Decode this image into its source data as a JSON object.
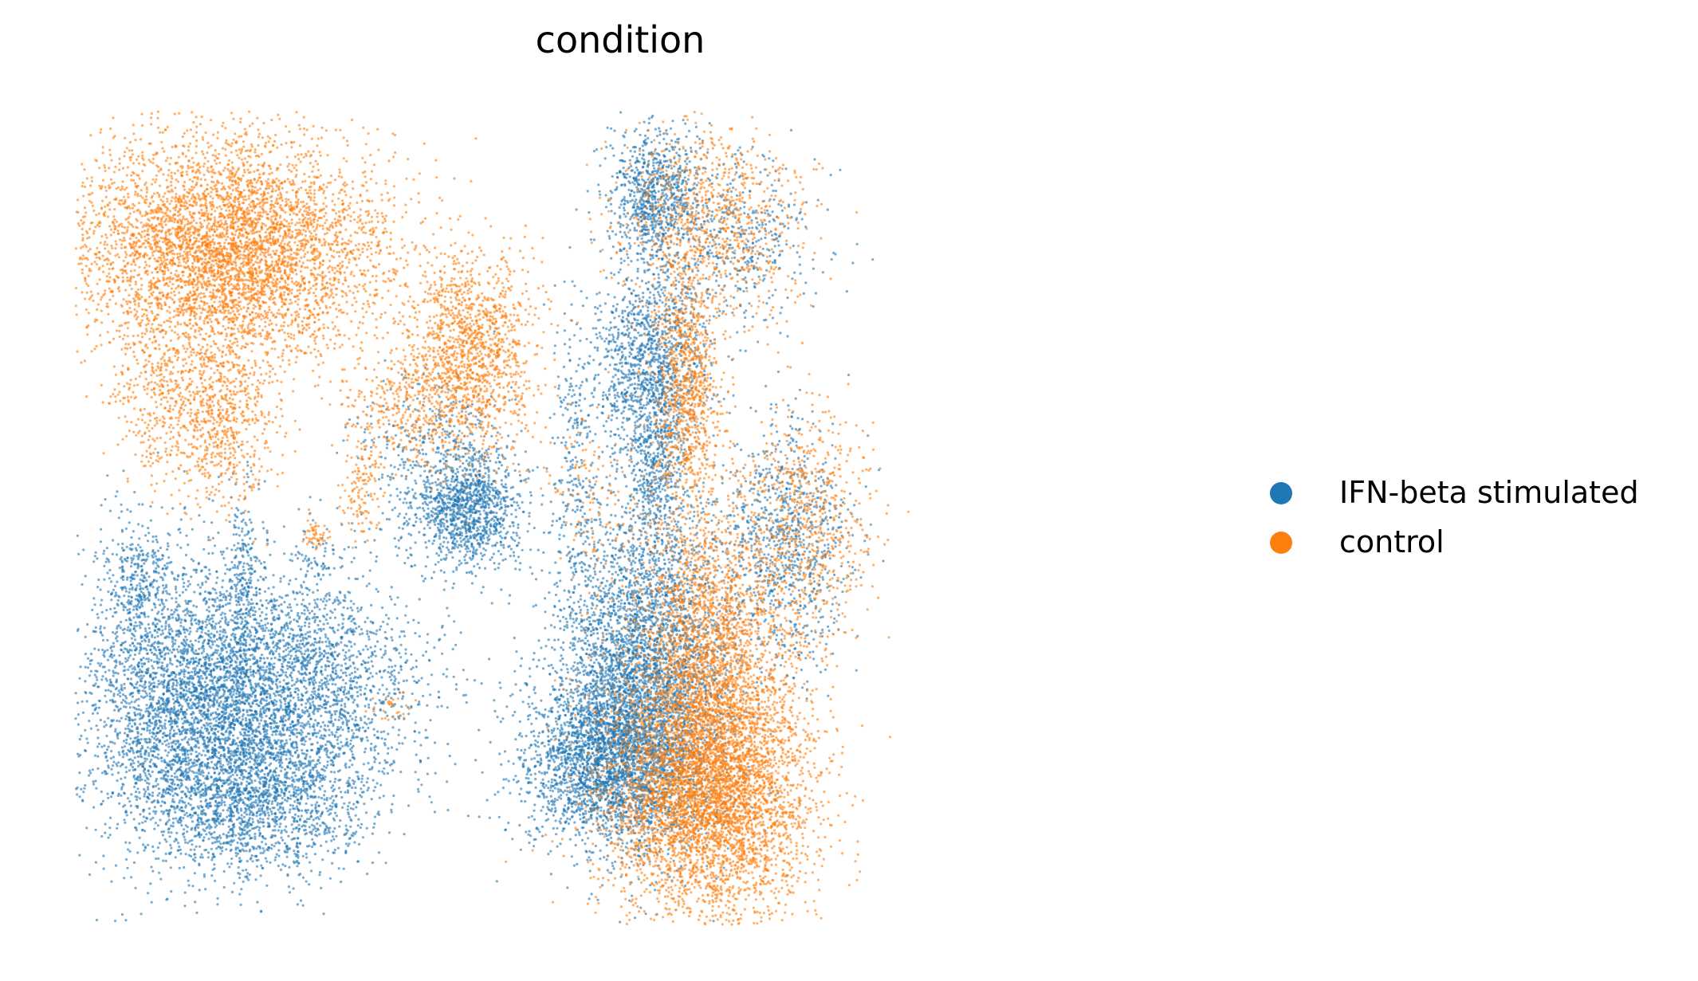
{
  "chart_data": {
    "type": "scatter",
    "title": "condition",
    "xlabel": "",
    "ylabel": "",
    "axes_visible": false,
    "grid": false,
    "legend_position": "right",
    "xlim": [
      0,
      1
    ],
    "ylim": [
      0,
      1
    ],
    "point_alpha": 0.6,
    "series": [
      {
        "name": "IFN-beta stimulated",
        "color": "#1f77b4",
        "clusters": [
          {
            "cx": 0.1,
            "cy": 0.27,
            "sx": 0.05,
            "sy": 0.09,
            "n": 3200
          },
          {
            "cx": 0.2,
            "cy": 0.3,
            "sx": 0.06,
            "sy": 0.07,
            "n": 2400
          },
          {
            "cx": 0.17,
            "cy": 0.16,
            "sx": 0.05,
            "sy": 0.05,
            "n": 1700
          },
          {
            "cx": 0.06,
            "cy": 0.43,
            "sx": 0.02,
            "sy": 0.04,
            "n": 300
          },
          {
            "cx": 0.155,
            "cy": 0.43,
            "sx": 0.008,
            "sy": 0.06,
            "n": 200
          },
          {
            "cx": 0.36,
            "cy": 0.51,
            "sx": 0.025,
            "sy": 0.035,
            "n": 1100
          },
          {
            "cx": 0.33,
            "cy": 0.58,
            "sx": 0.04,
            "sy": 0.05,
            "n": 400
          },
          {
            "cx": 0.22,
            "cy": 0.45,
            "sx": 0.015,
            "sy": 0.01,
            "n": 40
          },
          {
            "cx": 0.455,
            "cy": 0.56,
            "sx": 0.01,
            "sy": 0.1,
            "n": 250
          },
          {
            "cx": 0.52,
            "cy": 0.31,
            "sx": 0.04,
            "sy": 0.1,
            "n": 3800
          },
          {
            "cx": 0.49,
            "cy": 0.2,
            "sx": 0.04,
            "sy": 0.05,
            "n": 2500
          },
          {
            "cx": 0.525,
            "cy": 0.69,
            "sx": 0.025,
            "sy": 0.06,
            "n": 1200
          },
          {
            "cx": 0.53,
            "cy": 0.9,
            "sx": 0.02,
            "sy": 0.04,
            "n": 800
          },
          {
            "cx": 0.53,
            "cy": 0.56,
            "sx": 0.015,
            "sy": 0.06,
            "n": 500
          },
          {
            "cx": 0.65,
            "cy": 0.47,
            "sx": 0.03,
            "sy": 0.07,
            "n": 900
          },
          {
            "cx": 0.6,
            "cy": 0.84,
            "sx": 0.04,
            "sy": 0.05,
            "n": 500
          }
        ]
      },
      {
        "name": "control",
        "color": "#ff7f0e",
        "clusters": [
          {
            "cx": 0.14,
            "cy": 0.83,
            "sx": 0.07,
            "sy": 0.07,
            "n": 5000
          },
          {
            "cx": 0.13,
            "cy": 0.62,
            "sx": 0.025,
            "sy": 0.05,
            "n": 700
          },
          {
            "cx": 0.07,
            "cy": 0.65,
            "sx": 0.02,
            "sy": 0.05,
            "n": 250
          },
          {
            "cx": 0.36,
            "cy": 0.7,
            "sx": 0.03,
            "sy": 0.06,
            "n": 1400
          },
          {
            "cx": 0.3,
            "cy": 0.63,
            "sx": 0.03,
            "sy": 0.04,
            "n": 300
          },
          {
            "cx": 0.26,
            "cy": 0.53,
            "sx": 0.01,
            "sy": 0.03,
            "n": 120
          },
          {
            "cx": 0.22,
            "cy": 0.48,
            "sx": 0.005,
            "sy": 0.01,
            "n": 50
          },
          {
            "cx": 0.29,
            "cy": 0.27,
            "sx": 0.01,
            "sy": 0.01,
            "n": 30
          },
          {
            "cx": 0.58,
            "cy": 0.17,
            "sx": 0.045,
            "sy": 0.08,
            "n": 5200
          },
          {
            "cx": 0.58,
            "cy": 0.36,
            "sx": 0.035,
            "sy": 0.08,
            "n": 1800
          },
          {
            "cx": 0.56,
            "cy": 0.66,
            "sx": 0.015,
            "sy": 0.07,
            "n": 900
          },
          {
            "cx": 0.58,
            "cy": 0.87,
            "sx": 0.04,
            "sy": 0.06,
            "n": 900
          },
          {
            "cx": 0.67,
            "cy": 0.49,
            "sx": 0.03,
            "sy": 0.07,
            "n": 700
          },
          {
            "cx": 0.47,
            "cy": 0.52,
            "sx": 0.02,
            "sy": 0.06,
            "n": 120
          }
        ]
      }
    ]
  }
}
